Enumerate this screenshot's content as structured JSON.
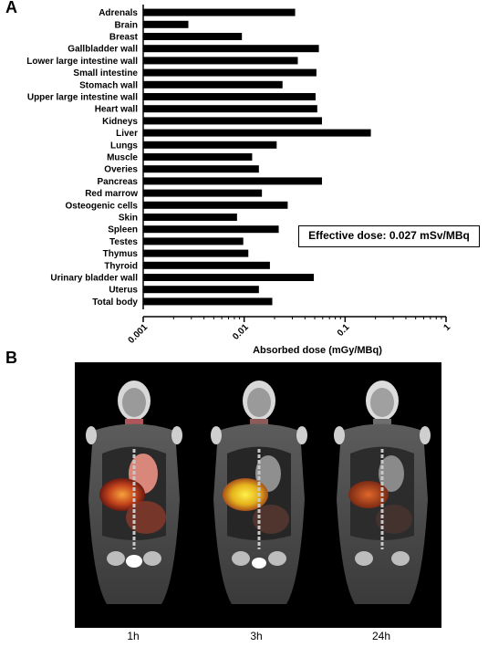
{
  "panels": {
    "a_label": "A",
    "b_label": "B"
  },
  "annotation": {
    "effective_dose": "Effective dose: 0.027 mSv/MBq"
  },
  "chart_data": {
    "type": "bar",
    "orientation": "horizontal",
    "xscale": "log",
    "xlim": [
      0.001,
      1
    ],
    "xticks": [
      "0.001",
      "0.01",
      "0.1",
      "1"
    ],
    "xlabel": "Absorbed dose (mGy/MBq)",
    "categories": [
      "Adrenals",
      "Brain",
      "Breast",
      "Gallbladder wall",
      "Lower large intestine wall",
      "Small intestine",
      "Stomach wall",
      "Upper large intestine wall",
      "Heart wall",
      "Kidneys",
      "Liver",
      "Lungs",
      "Muscle",
      "Overies",
      "Pancreas",
      "Red marrow",
      "Osteogenic cells",
      "Skin",
      "Spleen",
      "Testes",
      "Thymus",
      "Thyroid",
      "Urinary bladder wall",
      "Uterus",
      "Total body"
    ],
    "values": [
      0.032,
      0.0028,
      0.0095,
      0.055,
      0.034,
      0.052,
      0.024,
      0.051,
      0.053,
      0.059,
      0.18,
      0.021,
      0.012,
      0.014,
      0.059,
      0.015,
      0.027,
      0.0085,
      0.022,
      0.0098,
      0.011,
      0.018,
      0.049,
      0.014,
      0.019
    ]
  },
  "images": {
    "time_labels": [
      "1h",
      "3h",
      "24h"
    ]
  }
}
